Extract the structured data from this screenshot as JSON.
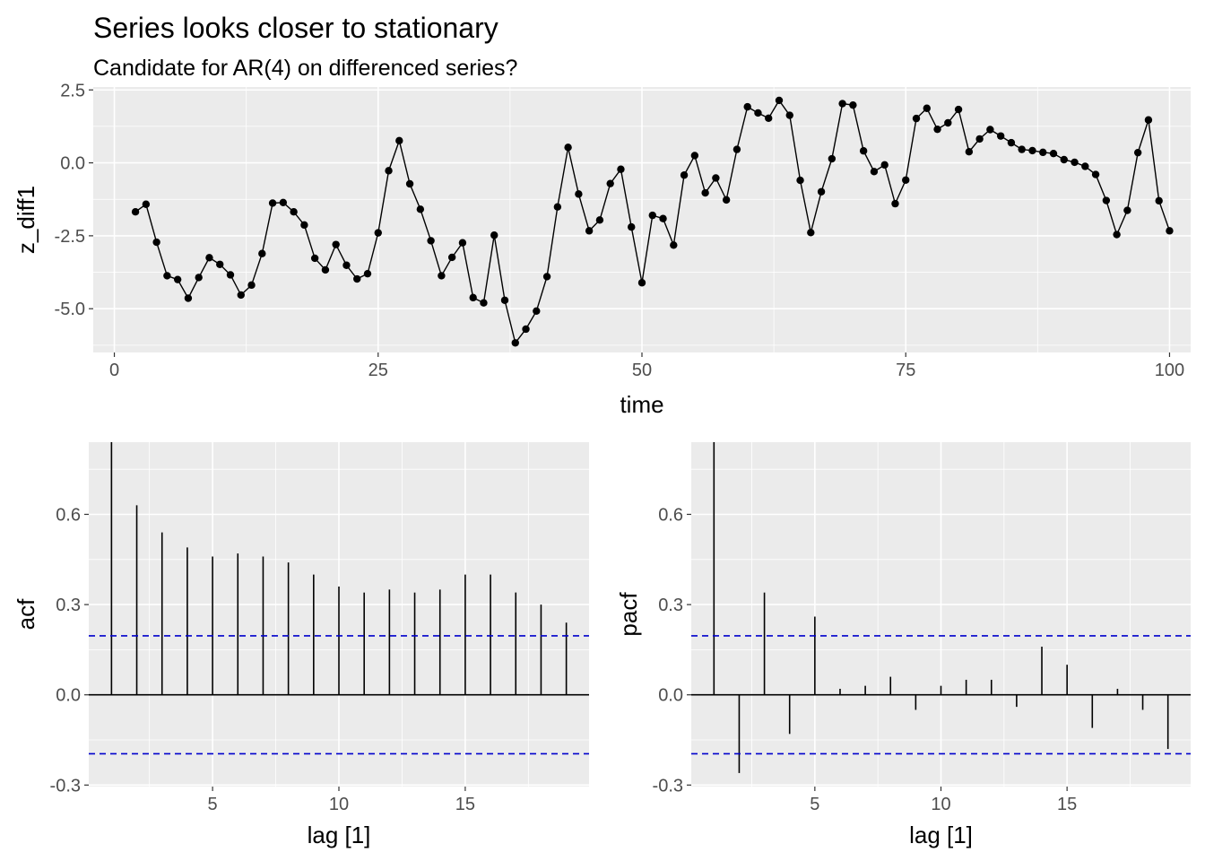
{
  "header": {
    "title": "Series looks closer to stationary",
    "subtitle": "Candidate for AR(4) on differenced series?"
  },
  "colors": {
    "panel_background": "#ebebeb",
    "series": "#000000",
    "confidence_band": "#0000cc"
  },
  "chart_data": [
    {
      "type": "line",
      "xlabel": "time",
      "ylabel": "z_diff1",
      "xlim": [
        -2,
        102
      ],
      "ylim": [
        -6.5,
        2.6
      ],
      "xticks": [
        0,
        25,
        50,
        75,
        100
      ],
      "yticks": [
        -5.0,
        -2.5,
        0.0,
        2.5
      ],
      "xtick_labels": [
        "0",
        "25",
        "50",
        "75",
        "100"
      ],
      "ytick_labels": [
        "-5.0",
        "-2.5",
        "0.0",
        "2.5"
      ],
      "markers": true,
      "x": [
        2,
        3,
        4,
        5,
        6,
        7,
        8,
        9,
        10,
        11,
        12,
        13,
        14,
        15,
        16,
        17,
        18,
        19,
        20,
        21,
        22,
        23,
        24,
        25,
        26,
        27,
        28,
        29,
        30,
        31,
        32,
        33,
        34,
        35,
        36,
        37,
        38,
        39,
        40,
        41,
        42,
        43,
        44,
        45,
        46,
        47,
        48,
        49,
        50,
        51,
        52,
        53,
        54,
        55,
        56,
        57,
        58,
        59,
        60,
        61,
        62,
        63,
        64,
        65,
        66,
        67,
        68,
        69,
        70,
        71,
        72,
        73,
        74,
        75,
        76,
        77,
        78,
        79,
        80,
        81,
        82,
        83,
        84,
        85,
        86,
        87,
        88,
        89,
        90,
        91,
        92,
        93,
        94,
        95,
        96,
        97,
        98,
        99,
        100
      ],
      "y": [
        -1.68,
        -1.42,
        -2.72,
        -3.87,
        -4.0,
        -4.64,
        -3.93,
        -3.25,
        -3.48,
        -3.84,
        -4.53,
        -4.19,
        -3.11,
        -1.38,
        -1.36,
        -1.68,
        -2.13,
        -3.27,
        -3.67,
        -2.8,
        -3.51,
        -3.98,
        -3.8,
        -2.4,
        -0.27,
        0.76,
        -0.72,
        -1.59,
        -2.67,
        -3.87,
        -3.24,
        -2.74,
        -4.62,
        -4.8,
        -2.48,
        -4.71,
        -6.17,
        -5.7,
        -5.08,
        -3.9,
        -1.51,
        0.53,
        -1.07,
        -2.33,
        -1.96,
        -0.71,
        -0.22,
        -2.2,
        -4.11,
        -1.8,
        -1.91,
        -2.82,
        -0.42,
        0.25,
        -1.03,
        -0.52,
        -1.27,
        0.46,
        1.92,
        1.71,
        1.53,
        2.14,
        1.63,
        -0.6,
        -2.39,
        -0.99,
        0.14,
        2.03,
        1.98,
        0.41,
        -0.3,
        -0.07,
        -1.4,
        -0.59,
        1.52,
        1.87,
        1.15,
        1.37,
        1.83,
        0.38,
        0.82,
        1.14,
        0.92,
        0.69,
        0.46,
        0.42,
        0.36,
        0.32,
        0.11,
        0.02,
        -0.12,
        -0.4,
        -1.29,
        -2.46,
        -1.63,
        0.35,
        1.47,
        -1.3,
        -2.33
      ]
    },
    {
      "type": "bar",
      "xlabel": "lag [1]",
      "ylabel": "acf",
      "xlim": [
        0.1,
        19.9
      ],
      "ylim": [
        -0.305,
        0.84
      ],
      "xticks": [
        5,
        10,
        15
      ],
      "yticks": [
        -0.3,
        0.0,
        0.3,
        0.6
      ],
      "xtick_labels": [
        "5",
        "10",
        "15"
      ],
      "ytick_labels": [
        "-0.3",
        "0.0",
        "0.3",
        "0.6"
      ],
      "categories": [
        1,
        2,
        3,
        4,
        5,
        6,
        7,
        8,
        9,
        10,
        11,
        12,
        13,
        14,
        15,
        16,
        17,
        18,
        19
      ],
      "values": [
        0.84,
        0.63,
        0.54,
        0.49,
        0.46,
        0.47,
        0.46,
        0.44,
        0.4,
        0.36,
        0.34,
        0.35,
        0.34,
        0.35,
        0.4,
        0.4,
        0.34,
        0.3,
        0.24
      ],
      "confidence_band": 0.196
    },
    {
      "type": "bar",
      "xlabel": "lag [1]",
      "ylabel": "pacf",
      "xlim": [
        0.1,
        19.9
      ],
      "ylim": [
        -0.305,
        0.84
      ],
      "xticks": [
        5,
        10,
        15
      ],
      "yticks": [
        -0.3,
        0.0,
        0.3,
        0.6
      ],
      "xtick_labels": [
        "5",
        "10",
        "15"
      ],
      "ytick_labels": [
        "-0.3",
        "0.0",
        "0.3",
        "0.6"
      ],
      "categories": [
        1,
        2,
        3,
        4,
        5,
        6,
        7,
        8,
        9,
        10,
        11,
        12,
        13,
        14,
        15,
        16,
        17,
        18,
        19
      ],
      "values": [
        0.84,
        -0.26,
        0.34,
        -0.13,
        0.26,
        0.02,
        0.03,
        0.06,
        -0.05,
        0.03,
        0.05,
        0.05,
        -0.04,
        0.16,
        0.1,
        -0.11,
        0.02,
        -0.05,
        -0.18
      ],
      "confidence_band": 0.196
    }
  ]
}
